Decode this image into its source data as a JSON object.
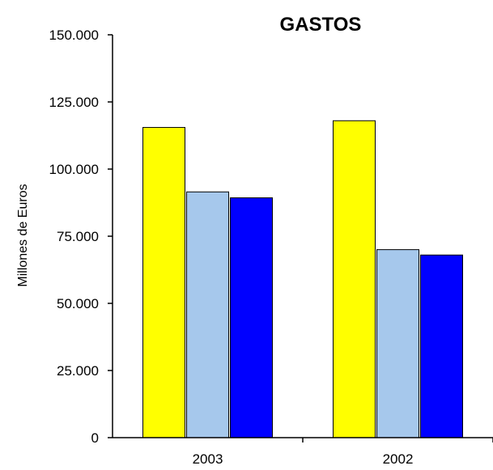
{
  "chart_data": {
    "type": "bar",
    "title": "GASTOS",
    "xlabel": "",
    "ylabel": "Millones de Euros",
    "ylim": [
      0,
      150000
    ],
    "yticks": [
      0,
      25000,
      50000,
      75000,
      100000,
      125000,
      150000
    ],
    "ytick_labels": [
      "0",
      "25.000",
      "50.000",
      "75.000",
      "100.000",
      "125.000",
      "150.000"
    ],
    "categories": [
      "2003",
      "2002"
    ],
    "series": [
      {
        "color": "#ffff00",
        "values": [
          115500,
          118000
        ]
      },
      {
        "color": "#a6c8ec",
        "values": [
          91500,
          70000
        ]
      },
      {
        "color": "#0000ff",
        "values": [
          89300,
          68000
        ]
      }
    ],
    "legend": false,
    "grid": false
  }
}
